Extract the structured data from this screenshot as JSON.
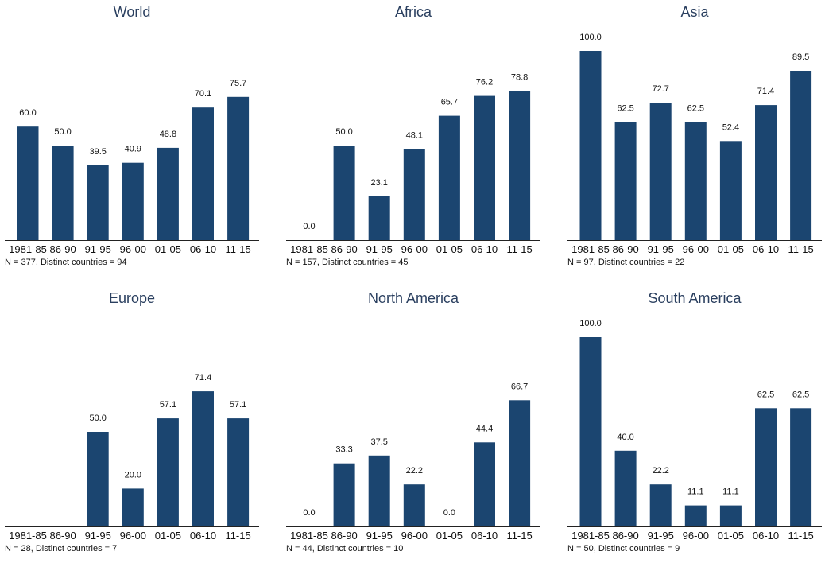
{
  "chart_data": [
    {
      "type": "bar",
      "title": "World",
      "categories": [
        "1981-85",
        "86-90",
        "91-95",
        "96-00",
        "01-05",
        "06-10",
        "11-15"
      ],
      "values": [
        60.0,
        50.0,
        39.5,
        40.9,
        48.8,
        70.1,
        75.7
      ],
      "labels": [
        "60.0",
        "50.0",
        "39.5",
        "40.9",
        "48.8",
        "70.1",
        "75.7"
      ],
      "note": "N = 377, Distinct countries = 94",
      "ylim": [
        0,
        100
      ],
      "color": "#1b4570"
    },
    {
      "type": "bar",
      "title": "Africa",
      "categories": [
        "1981-85",
        "86-90",
        "91-95",
        "96-00",
        "01-05",
        "06-10",
        "11-15"
      ],
      "values": [
        0.0,
        50.0,
        23.1,
        48.1,
        65.7,
        76.2,
        78.8
      ],
      "labels": [
        "0.0",
        "50.0",
        "23.1",
        "48.1",
        "65.7",
        "76.2",
        "78.8"
      ],
      "note": "N = 157, Distinct countries = 45",
      "ylim": [
        0,
        100
      ],
      "color": "#1b4570"
    },
    {
      "type": "bar",
      "title": "Asia",
      "categories": [
        "1981-85",
        "86-90",
        "91-95",
        "96-00",
        "01-05",
        "06-10",
        "11-15"
      ],
      "values": [
        100.0,
        62.5,
        72.7,
        62.5,
        52.4,
        71.4,
        89.5
      ],
      "labels": [
        "100.0",
        "62.5",
        "72.7",
        "62.5",
        "52.4",
        "71.4",
        "89.5"
      ],
      "note": "N = 97, Distinct countries = 22",
      "ylim": [
        0,
        100
      ],
      "color": "#1b4570"
    },
    {
      "type": "bar",
      "title": "Europe",
      "categories": [
        "1981-85",
        "86-90",
        "91-95",
        "96-00",
        "01-05",
        "06-10",
        "11-15"
      ],
      "values": [
        null,
        null,
        50.0,
        20.0,
        57.1,
        71.4,
        57.1
      ],
      "labels": [
        "",
        "",
        "50.0",
        "20.0",
        "57.1",
        "71.4",
        "57.1"
      ],
      "note": "N = 28, Distinct countries = 7",
      "ylim": [
        0,
        100
      ],
      "color": "#1b4570"
    },
    {
      "type": "bar",
      "title": "North America",
      "categories": [
        "1981-85",
        "86-90",
        "91-95",
        "96-00",
        "01-05",
        "06-10",
        "11-15"
      ],
      "values": [
        0.0,
        33.3,
        37.5,
        22.2,
        0.0,
        44.4,
        66.7
      ],
      "labels": [
        "0.0",
        "33.3",
        "37.5",
        "22.2",
        "0.0",
        "44.4",
        "66.7"
      ],
      "note": "N = 44, Distinct countries = 10",
      "ylim": [
        0,
        100
      ],
      "color": "#1b4570"
    },
    {
      "type": "bar",
      "title": "South America",
      "categories": [
        "1981-85",
        "86-90",
        "91-95",
        "96-00",
        "01-05",
        "06-10",
        "11-15"
      ],
      "values": [
        100.0,
        40.0,
        22.2,
        11.1,
        11.1,
        62.5,
        62.5
      ],
      "labels": [
        "100.0",
        "40.0",
        "22.2",
        "11.1",
        "11.1",
        "62.5",
        "62.5"
      ],
      "note": "N = 50, Distinct countries = 9",
      "ylim": [
        0,
        100
      ],
      "color": "#1b4570"
    }
  ]
}
